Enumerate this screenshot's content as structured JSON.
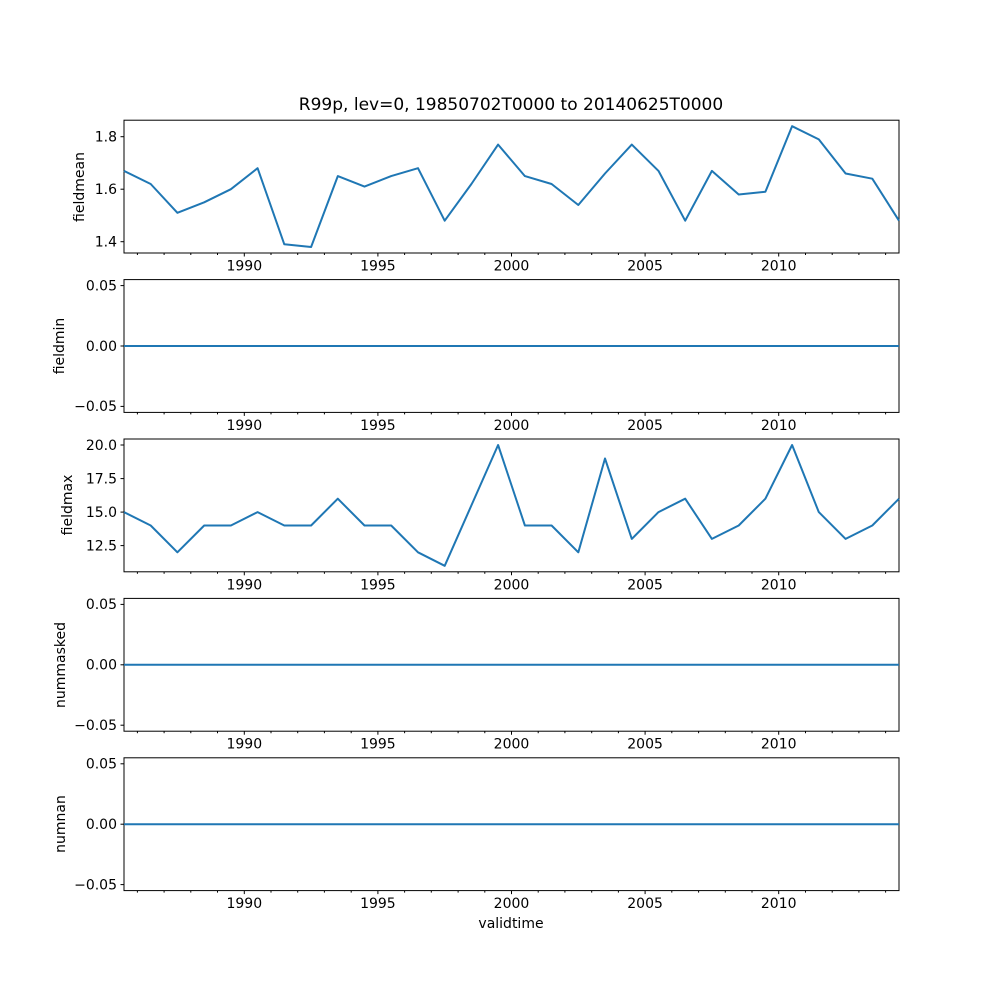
{
  "figure": {
    "title": "R99p, lev=0, 19850702T0000 to 20140625T0000",
    "background_color": "#ffffff",
    "axis_color": "#000000",
    "text_color": "#000000"
  },
  "chart_data": {
    "type": "line",
    "title": "R99p, lev=0, 19850702T0000 to 20140625T0000",
    "xlabel": "validtime",
    "line_color": "#1f77b4",
    "grid": false,
    "legend": "none",
    "xlim": [
      1985.5,
      2014.5
    ],
    "xticks": [
      1990,
      1995,
      2000,
      2005,
      2010
    ],
    "xtick_labels": [
      "1990",
      "1995",
      "2000",
      "2005",
      "2010"
    ],
    "x": [
      1985.5,
      1986.5,
      1987.5,
      1988.5,
      1989.5,
      1990.5,
      1991.5,
      1992.5,
      1993.5,
      1994.5,
      1995.5,
      1996.5,
      1997.5,
      1998.5,
      1999.5,
      2000.5,
      2001.5,
      2002.5,
      2003.5,
      2004.5,
      2005.5,
      2006.5,
      2007.5,
      2008.5,
      2009.5,
      2010.5,
      2011.5,
      2012.5,
      2013.5,
      2014.5
    ],
    "subplots": [
      {
        "ylabel": "fieldmean",
        "ylim": [
          1.357,
          1.863
        ],
        "yticks": [
          1.4,
          1.6,
          1.8
        ],
        "ytick_labels": [
          "1.4",
          "1.6",
          "1.8"
        ],
        "values": [
          1.67,
          1.62,
          1.51,
          1.55,
          1.6,
          1.68,
          1.39,
          1.38,
          1.65,
          1.61,
          1.65,
          1.68,
          1.48,
          1.62,
          1.77,
          1.65,
          1.62,
          1.54,
          1.66,
          1.77,
          1.67,
          1.48,
          1.67,
          1.58,
          1.59,
          1.84,
          1.79,
          1.66,
          1.64,
          1.48
        ]
      },
      {
        "ylabel": "fieldmin",
        "ylim": [
          -0.055,
          0.055
        ],
        "yticks": [
          0.05,
          0.0,
          -0.05
        ],
        "ytick_labels": [
          "0.05",
          "0.00",
          "−0.05"
        ],
        "values": [
          0,
          0,
          0,
          0,
          0,
          0,
          0,
          0,
          0,
          0,
          0,
          0,
          0,
          0,
          0,
          0,
          0,
          0,
          0,
          0,
          0,
          0,
          0,
          0,
          0,
          0,
          0,
          0,
          0,
          0
        ]
      },
      {
        "ylabel": "fieldmax",
        "ylim": [
          10.55,
          20.45
        ],
        "yticks": [
          20.0,
          17.5,
          15.0,
          12.5
        ],
        "ytick_labels": [
          "20.0",
          "17.5",
          "15.0",
          "12.5"
        ],
        "values": [
          15,
          14,
          12,
          14,
          14,
          15,
          14,
          14,
          16,
          14,
          14,
          12,
          11,
          15.5,
          20,
          14,
          14,
          12,
          19,
          13,
          15,
          16,
          13,
          14,
          16,
          20,
          15,
          13,
          14,
          16
        ]
      },
      {
        "ylabel": "nummasked",
        "ylim": [
          -0.055,
          0.055
        ],
        "yticks": [
          0.05,
          0.0,
          -0.05
        ],
        "ytick_labels": [
          "0.05",
          "0.00",
          "−0.05"
        ],
        "values": [
          0,
          0,
          0,
          0,
          0,
          0,
          0,
          0,
          0,
          0,
          0,
          0,
          0,
          0,
          0,
          0,
          0,
          0,
          0,
          0,
          0,
          0,
          0,
          0,
          0,
          0,
          0,
          0,
          0,
          0
        ]
      },
      {
        "ylabel": "numnan",
        "ylim": [
          -0.055,
          0.055
        ],
        "yticks": [
          0.05,
          0.0,
          -0.05
        ],
        "ytick_labels": [
          "0.05",
          "0.00",
          "−0.05"
        ],
        "values": [
          0,
          0,
          0,
          0,
          0,
          0,
          0,
          0,
          0,
          0,
          0,
          0,
          0,
          0,
          0,
          0,
          0,
          0,
          0,
          0,
          0,
          0,
          0,
          0,
          0,
          0,
          0,
          0,
          0,
          0
        ]
      }
    ]
  }
}
